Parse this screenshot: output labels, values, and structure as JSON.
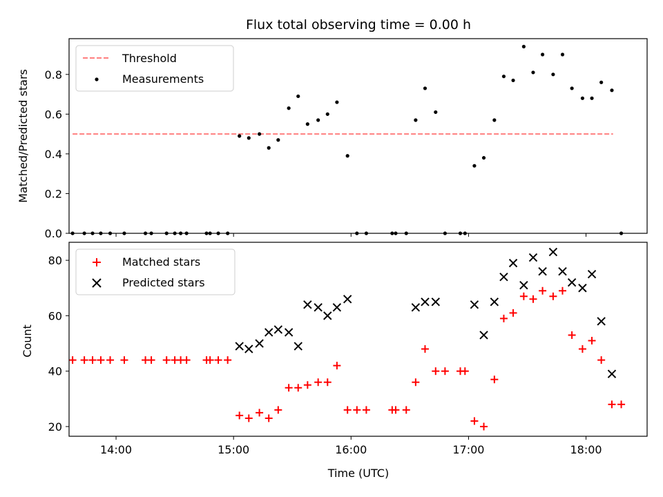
{
  "chart_data": [
    {
      "type": "scatter",
      "title": "Flux total observing time = 0.00 h",
      "xlabel": "",
      "ylabel": "Matched/Predicted stars",
      "x_unit": "hours (UTC)",
      "xlim": [
        13.6,
        18.52
      ],
      "ylim": [
        0.0,
        0.98
      ],
      "yticks": [
        0.0,
        0.2,
        0.4,
        0.6,
        0.8
      ],
      "ytick_labels": [
        "0.0",
        "0.2",
        "0.4",
        "0.6",
        "0.8"
      ],
      "legend_position": "upper left",
      "series": [
        {
          "name": "Threshold",
          "kind": "dashed-line",
          "color": "#ff7f7f",
          "x": [
            13.63,
            18.23
          ],
          "y": [
            0.5,
            0.5
          ]
        },
        {
          "name": "Measurements",
          "kind": "scatter",
          "marker": "dot",
          "color": "#000000",
          "x": [
            13.63,
            13.73,
            13.8,
            13.87,
            13.95,
            14.07,
            14.25,
            14.3,
            14.43,
            14.5,
            14.55,
            14.6,
            14.77,
            14.8,
            14.87,
            14.95,
            15.05,
            15.13,
            15.22,
            15.3,
            15.38,
            15.47,
            15.55,
            15.63,
            15.72,
            15.8,
            15.88,
            15.97,
            16.05,
            16.13,
            16.35,
            16.38,
            16.47,
            16.55,
            16.63,
            16.72,
            16.8,
            16.93,
            16.97,
            17.05,
            17.13,
            17.22,
            17.3,
            17.38,
            17.47,
            17.55,
            17.63,
            17.72,
            17.8,
            17.88,
            17.97,
            18.05,
            18.13,
            18.22,
            18.3
          ],
          "y": [
            0.0,
            0.0,
            0.0,
            0.0,
            0.0,
            0.0,
            0.0,
            0.0,
            0.0,
            0.0,
            0.0,
            0.0,
            0.0,
            0.0,
            0.0,
            0.0,
            0.49,
            0.48,
            0.5,
            0.43,
            0.47,
            0.63,
            0.69,
            0.55,
            0.57,
            0.6,
            0.66,
            0.39,
            0.0,
            0.0,
            0.0,
            0.0,
            0.0,
            0.57,
            0.73,
            0.61,
            0.0,
            0.0,
            0.0,
            0.34,
            0.38,
            0.57,
            0.79,
            0.77,
            0.94,
            0.81,
            0.9,
            0.8,
            0.9,
            0.73,
            0.68,
            0.68,
            0.76,
            0.72,
            0.0
          ]
        }
      ]
    },
    {
      "type": "scatter",
      "title": "",
      "xlabel": "Time (UTC)",
      "ylabel": "Count",
      "x_unit": "hours (UTC)",
      "xlim": [
        13.6,
        18.52
      ],
      "ylim": [
        16.5,
        86.5
      ],
      "yticks": [
        20,
        40,
        60,
        80
      ],
      "ytick_labels": [
        "20",
        "40",
        "60",
        "80"
      ],
      "xticks": [
        14,
        15,
        16,
        17,
        18
      ],
      "xtick_labels": [
        "14:00",
        "15:00",
        "16:00",
        "17:00",
        "18:00"
      ],
      "legend_position": "upper left",
      "series": [
        {
          "name": "Matched stars",
          "kind": "scatter",
          "marker": "plus",
          "color": "#ff0000",
          "x": [
            13.63,
            13.73,
            13.8,
            13.87,
            13.95,
            14.07,
            14.25,
            14.3,
            14.43,
            14.5,
            14.55,
            14.6,
            14.77,
            14.8,
            14.87,
            14.95,
            15.05,
            15.13,
            15.22,
            15.3,
            15.38,
            15.47,
            15.55,
            15.63,
            15.72,
            15.8,
            15.88,
            15.97,
            16.05,
            16.13,
            16.35,
            16.38,
            16.47,
            16.55,
            16.63,
            16.72,
            16.8,
            16.93,
            16.97,
            17.05,
            17.13,
            17.22,
            17.3,
            17.38,
            17.47,
            17.55,
            17.63,
            17.72,
            17.8,
            17.88,
            17.97,
            18.05,
            18.13,
            18.22,
            18.3
          ],
          "y": [
            44,
            44,
            44,
            44,
            44,
            44,
            44,
            44,
            44,
            44,
            44,
            44,
            44,
            44,
            44,
            44,
            24,
            23,
            25,
            23,
            26,
            34,
            34,
            35,
            36,
            36,
            42,
            26,
            26,
            26,
            26,
            26,
            26,
            36,
            48,
            40,
            40,
            40,
            40,
            22,
            20,
            37,
            59,
            61,
            67,
            66,
            69,
            67,
            69,
            53,
            48,
            51,
            44,
            28,
            28
          ]
        },
        {
          "name": "Predicted stars",
          "kind": "scatter",
          "marker": "x",
          "color": "#000000",
          "x": [
            15.05,
            15.13,
            15.22,
            15.3,
            15.38,
            15.47,
            15.55,
            15.63,
            15.72,
            15.8,
            15.88,
            15.97,
            16.55,
            16.63,
            16.72,
            17.05,
            17.13,
            17.22,
            17.3,
            17.38,
            17.47,
            17.55,
            17.63,
            17.72,
            17.8,
            17.88,
            17.97,
            18.05,
            18.13,
            18.22
          ],
          "y": [
            49,
            48,
            50,
            54,
            55,
            54,
            49,
            64,
            63,
            60,
            63,
            66,
            63,
            65,
            65,
            64,
            53,
            65,
            74,
            79,
            71,
            81,
            76,
            83,
            76,
            72,
            70,
            75,
            58,
            39
          ]
        }
      ]
    }
  ]
}
